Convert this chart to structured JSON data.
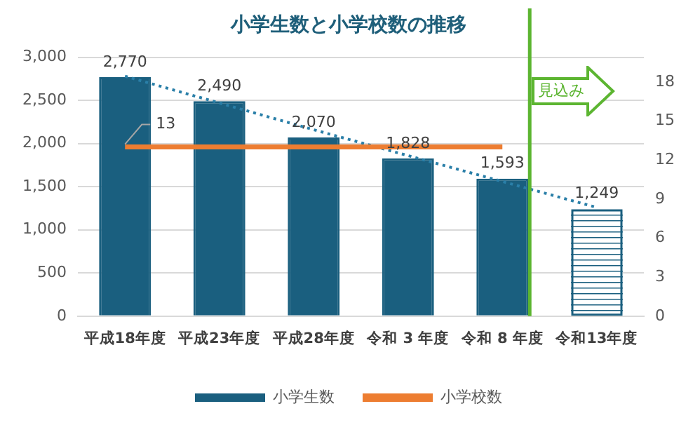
{
  "chart_data": {
    "type": "bar",
    "title": "小学生数と小学校数の推移",
    "categories": [
      "平成18年度",
      "平成23年度",
      "平成28年度",
      "令和 3 年度",
      "令和 8 年度",
      "令和13年度"
    ],
    "series": [
      {
        "name": "小学生数",
        "color": "#1a5f7f",
        "colors": [
          "#1a5f7f",
          "#1a5f7f",
          "#1a5f7f",
          "#1a5f7f",
          "#1a5f7f",
          "#ffffff"
        ],
        "values": [
          2770,
          2490,
          2070,
          1828,
          1593,
          1249
        ],
        "value_labels": [
          "2,770",
          "2,490",
          "2,070",
          "1,828",
          "1,593",
          "1,249"
        ]
      },
      {
        "name": "小学校数",
        "type": "line",
        "axis": "y2",
        "color": "#ed7d31",
        "values": [
          13,
          13,
          13,
          13,
          13,
          null
        ],
        "value_labels": [
          "13",
          null,
          null,
          null,
          null,
          null
        ]
      },
      {
        "type": "line",
        "line_style": "dotted",
        "color": "#2a7fa8",
        "values": [
          2780,
          2470,
          2160,
          1860,
          1560,
          1260
        ]
      }
    ],
    "ylim": [
      0,
      3000
    ],
    "yticks": [
      0,
      {
        "value": 500,
        "label": "500"
      },
      {
        "value": 1000,
        "label": "1,000"
      },
      {
        "value": 1500,
        "label": "1,500"
      },
      {
        "value": 2000,
        "label": "2,000"
      },
      {
        "value": 2500,
        "label": "2,500"
      },
      {
        "value": 3000,
        "label": "3,000"
      }
    ],
    "y2lim": [
      0,
      19.9
    ],
    "y2ticks": [
      0,
      3,
      6,
      9,
      12,
      15,
      18
    ],
    "ref_lines": [
      {
        "axis": "x",
        "value": "令和 8 年度",
        "label": "見込み",
        "color": "#5cb531"
      }
    ],
    "grid": "y",
    "legend": "bottom",
    "marker": "none"
  }
}
